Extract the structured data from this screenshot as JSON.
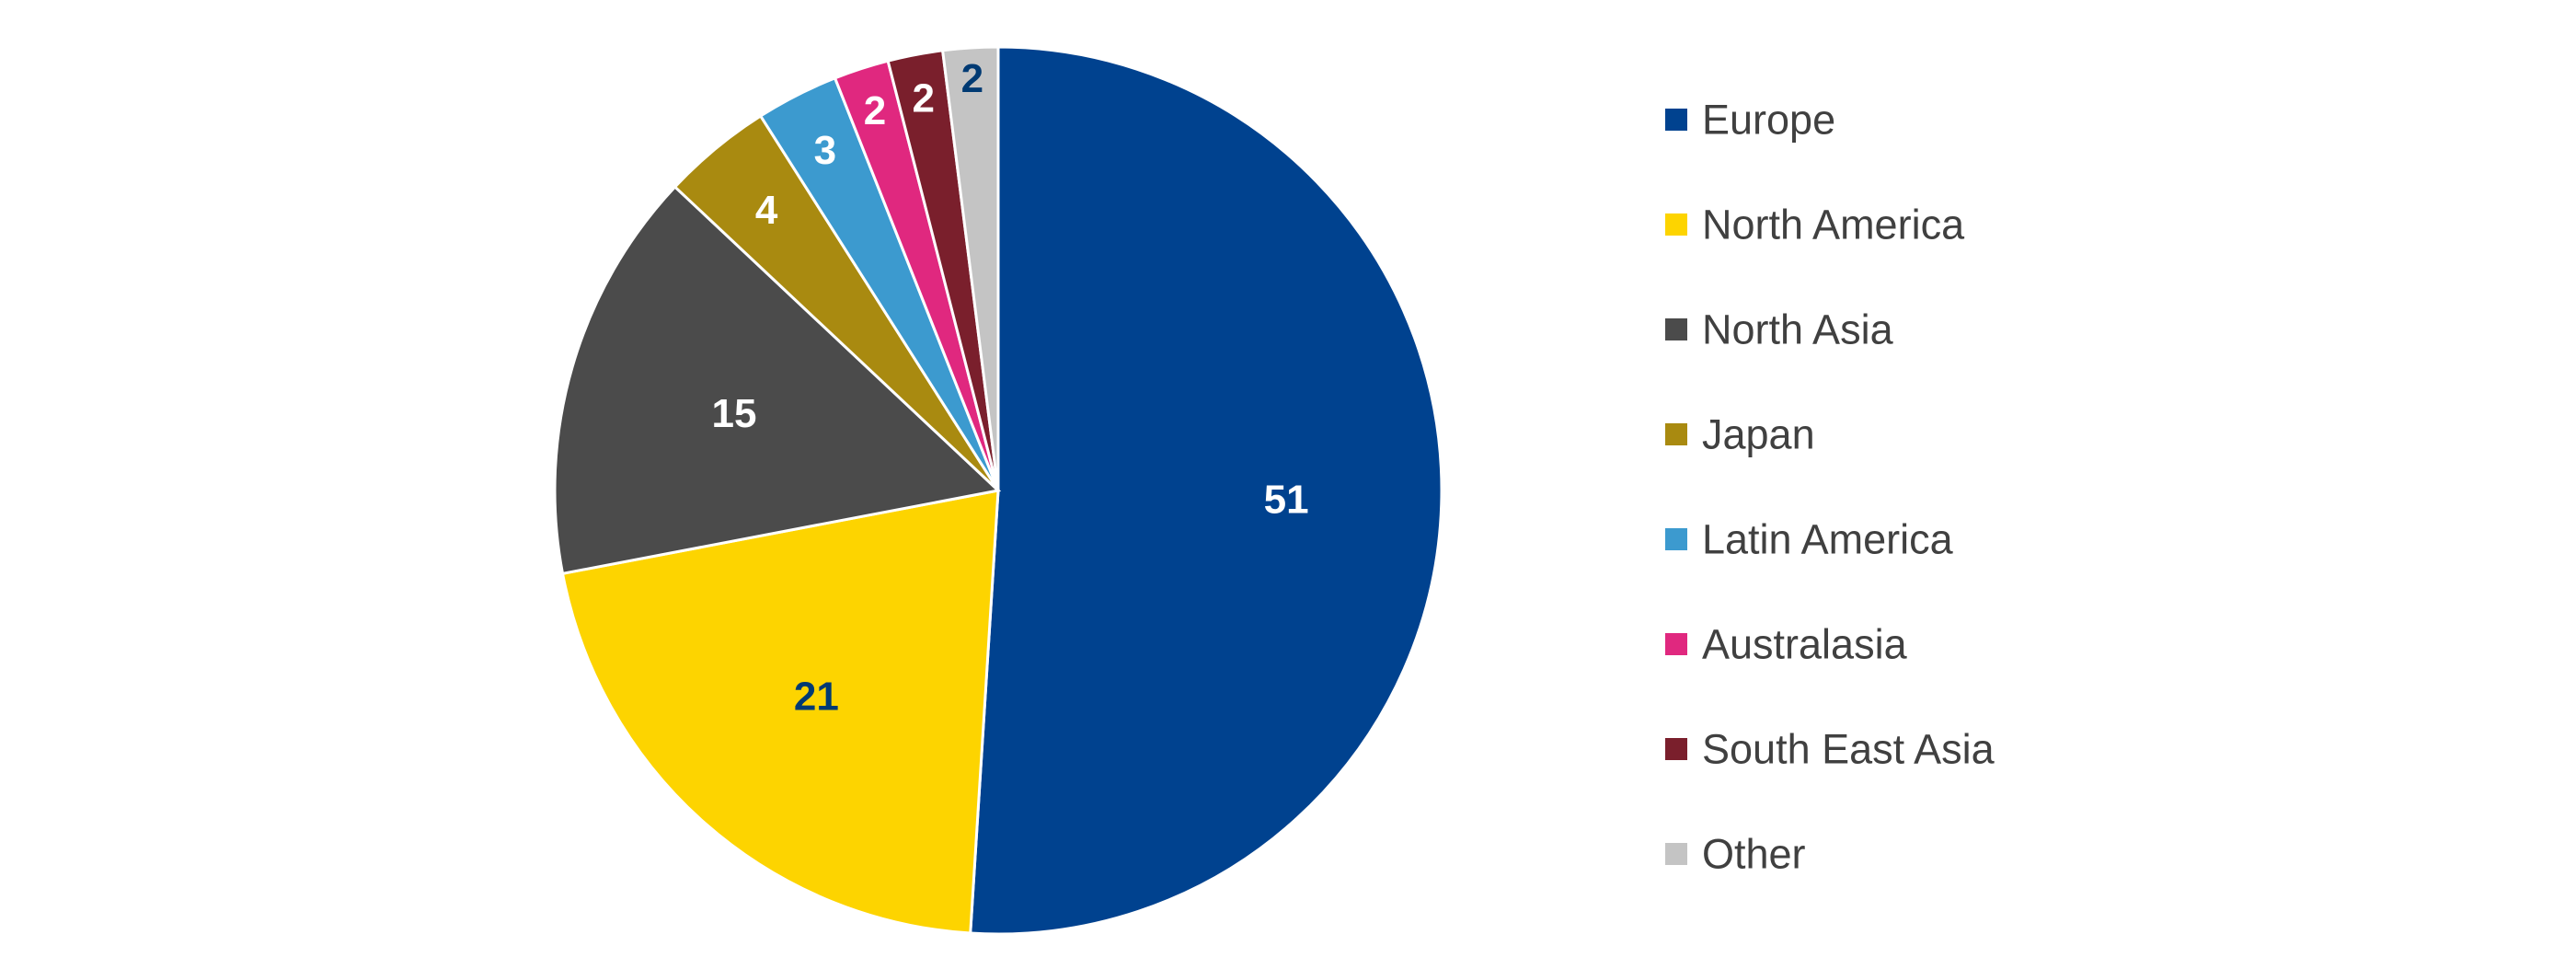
{
  "chart_data": {
    "type": "pie",
    "title": "",
    "legend_position": "right",
    "slices": [
      {
        "name": "Europe",
        "value": 51,
        "color": "#00428F",
        "label_color": "#FFFFFF"
      },
      {
        "name": "North America",
        "value": 21,
        "color": "#FDD400",
        "label_color": "#003A73"
      },
      {
        "name": "North Asia",
        "value": 15,
        "color": "#4B4B4B",
        "label_color": "#FFFFFF"
      },
      {
        "name": "Japan",
        "value": 4,
        "color": "#A98A10",
        "label_color": "#FFFFFF"
      },
      {
        "name": "Latin America",
        "value": 3,
        "color": "#3C9ACF",
        "label_color": "#FFFFFF"
      },
      {
        "name": "Australasia",
        "value": 2,
        "color": "#E0287F",
        "label_color": "#FFFFFF"
      },
      {
        "name": "South East Asia",
        "value": 2,
        "color": "#7A1F2C",
        "label_color": "#FFFFFF"
      },
      {
        "name": "Other",
        "value": 2,
        "color": "#C4C4C4",
        "label_color": "#003A73"
      }
    ]
  }
}
